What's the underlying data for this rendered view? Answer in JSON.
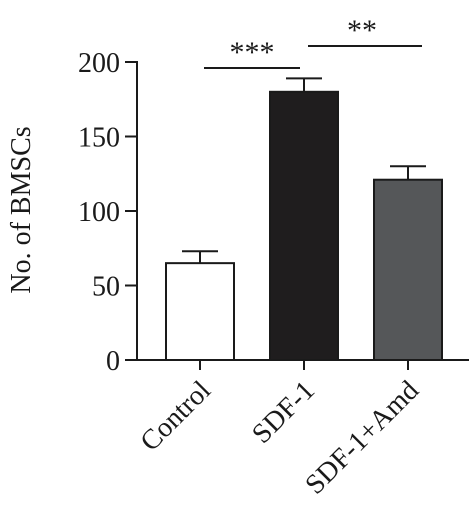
{
  "chart_data": {
    "type": "bar",
    "title": "",
    "xlabel": "",
    "ylabel": "No. of BMSCs",
    "ylim": [
      0,
      200
    ],
    "yticks": [
      0,
      50,
      100,
      150,
      200
    ],
    "categories": [
      "Control",
      "SDF-1",
      "SDF-1+Amd"
    ],
    "values": [
      65,
      180,
      121
    ],
    "errors": [
      8,
      9,
      9
    ],
    "bar_colors": [
      "#ffffff",
      "#1f1d1e",
      "#555759"
    ],
    "bar_edge_color": "#1a1a1a",
    "grid": false,
    "significance": [
      {
        "from": 0,
        "to": 1,
        "label": "***"
      },
      {
        "from": 1,
        "to": 2,
        "label": "**"
      }
    ]
  }
}
